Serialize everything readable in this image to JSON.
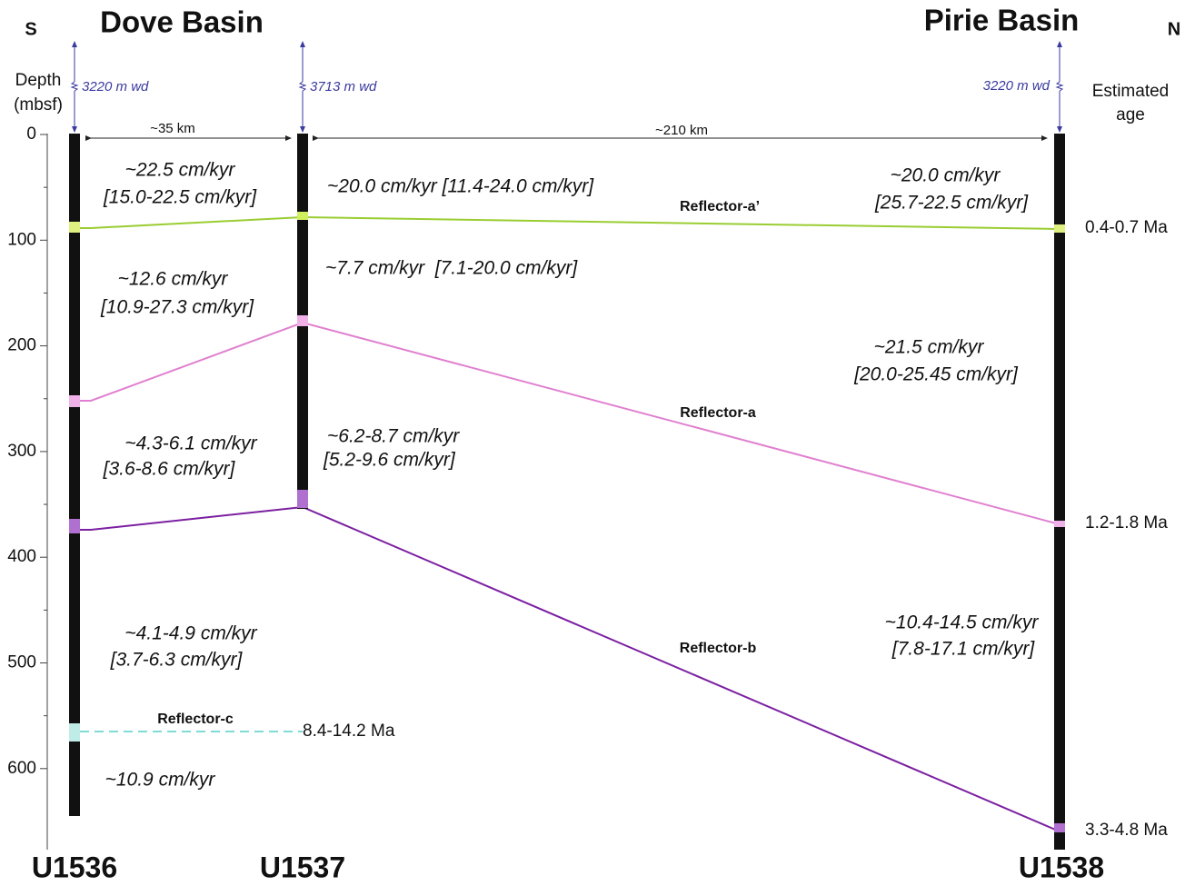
{
  "compass": {
    "south": "S",
    "north": "N"
  },
  "basins": [
    "Dove Basin",
    "Pirie Basin"
  ],
  "depth_axis": {
    "title_lines": [
      "Depth",
      "(mbsf)"
    ],
    "ticks": [
      0,
      100,
      200,
      300,
      400,
      500,
      600
    ]
  },
  "age_title": [
    "Estimated",
    "age"
  ],
  "sites": [
    {
      "name": "U1536",
      "water_depth": "3220 m wd"
    },
    {
      "name": "U1537",
      "water_depth": "3713 m wd"
    },
    {
      "name": "U1538",
      "water_depth": "3220 m wd"
    }
  ],
  "distances": [
    "~35 km",
    "~210 km"
  ],
  "reflectors": [
    {
      "label": "Reflector-a’",
      "age": "0.4-0.7 Ma"
    },
    {
      "label": "Reflector-a",
      "age": "1.2-1.8 Ma"
    },
    {
      "label": "Reflector-b",
      "age": "3.3-4.8 Ma"
    },
    {
      "label": "Reflector-c",
      "age": "8.4-14.2 Ma"
    }
  ],
  "rates": {
    "U1536": [
      "~22.5 cm/kyr",
      "[15.0-22.5 cm/kyr]",
      "~12.6 cm/kyr",
      "[10.9-27.3 cm/kyr]",
      "~4.3-6.1 cm/kyr",
      "[3.6-8.6 cm/kyr]",
      "~4.1-4.9 cm/kyr",
      "[3.7-6.3 cm/kyr]",
      "~10.9 cm/kyr"
    ],
    "U1537": [
      "~20.0 cm/kyr [11.4-24.0 cm/kyr]",
      "~7.7 cm/kyr  [7.1-20.0 cm/kyr]",
      "~6.2-8.7 cm/kyr",
      "[5.2-9.6 cm/kyr]"
    ],
    "U1538": [
      "~20.0 cm/kyr",
      "[25.7-22.5 cm/kyr]",
      "~21.5 cm/kyr",
      "[20.0-25.45 cm/kyr]",
      "~10.4-14.5 cm/kyr",
      "[7.8-17.1 cm/kyr]"
    ]
  }
}
